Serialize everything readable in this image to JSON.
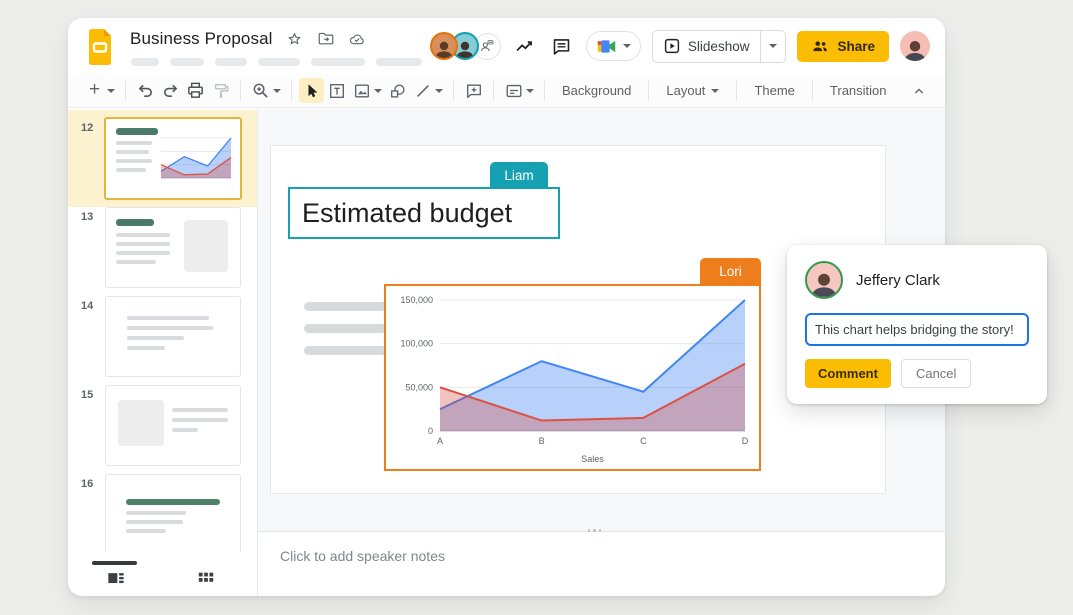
{
  "app": {
    "title": "Business Proposal",
    "doc_icons": [
      "star-icon",
      "move-folder-icon",
      "cloud-saved-icon"
    ]
  },
  "header": {
    "presence_avatars": [
      "collaborator-orange",
      "collaborator-teal"
    ],
    "add_collaborator_icon": "person-add-icon",
    "activity_icon": "trending-icon",
    "comments_icon": "comment-icon",
    "meet_icon": "google-meet-icon",
    "slideshow_label": "Slideshow",
    "share_label": "Share"
  },
  "toolbar": {
    "items": [
      "new-slide",
      "undo",
      "redo",
      "print",
      "paint-format",
      "zoom",
      "select",
      "text-box",
      "insert-image",
      "insert-shape",
      "insert-line",
      "insert-comment",
      "insert-placeholder"
    ],
    "background_label": "Background",
    "layout_label": "Layout",
    "theme_label": "Theme",
    "transition_label": "Transition"
  },
  "filmstrip": {
    "slides": [
      {
        "number": "12",
        "selected": true
      },
      {
        "number": "13",
        "selected": false
      },
      {
        "number": "14",
        "selected": false
      },
      {
        "number": "15",
        "selected": false
      },
      {
        "number": "16",
        "selected": false
      }
    ]
  },
  "slide": {
    "title": "Estimated budget",
    "title_editor_tag": "Liam",
    "chart_editor_tag": "Lori"
  },
  "chart_data": {
    "type": "area",
    "x": [
      "A",
      "B",
      "C",
      "D"
    ],
    "series": [
      {
        "name": "series-blue",
        "color": "#4285f4",
        "fill": "rgba(66,133,244,0.38)",
        "values": [
          25000,
          80000,
          45000,
          150000
        ]
      },
      {
        "name": "series-red",
        "color": "#dd5044",
        "fill": "rgba(219,68,55,0.32)",
        "values": [
          50000,
          12000,
          15000,
          77000
        ]
      }
    ],
    "xlabel": "Sales",
    "ylabel": "",
    "ylim": [
      0,
      150000
    ],
    "yticks": [
      0,
      50000,
      100000,
      150000
    ],
    "ytick_labels": [
      "0",
      "50,000",
      "100,000",
      "150,000"
    ],
    "grid": true,
    "legend": false
  },
  "comment_card": {
    "author": "Jeffery Clark",
    "input_text": "This chart helps bridging the story!",
    "comment_label": "Comment",
    "cancel_label": "Cancel"
  },
  "notes": {
    "placeholder": "Click to add speaker notes"
  },
  "colors": {
    "accent_teal": "#16a1b3",
    "accent_orange": "#ee7d1c",
    "action_yellow": "#fbbc04",
    "input_focus_blue": "#1a73e8",
    "selected_thumb_bg": "#fdf2d0",
    "selected_thumb_border": "#e0b73e"
  }
}
